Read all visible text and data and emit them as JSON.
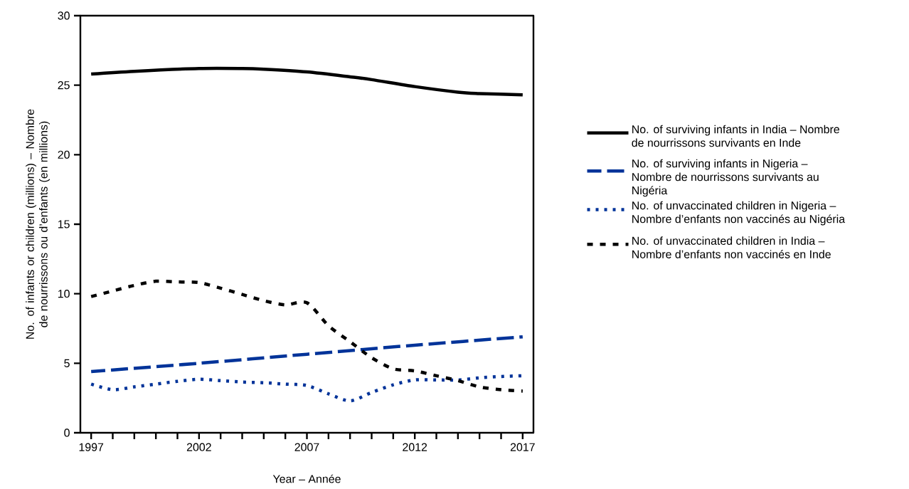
{
  "chart_data": {
    "type": "line",
    "xlabel": "Year – Année",
    "ylabel": "No. of infants or children (millions) – Nombre de nourrissons ou d’enfants (en millions)",
    "xlim": [
      1996.5,
      2017.5
    ],
    "ylim": [
      0,
      30
    ],
    "xticks": [
      1997,
      {
        "value": 1998,
        "label": null
      },
      {
        "value": 1999,
        "label": null
      },
      {
        "value": 2000,
        "label": null
      },
      {
        "value": 2001,
        "label": null
      },
      2002,
      {
        "value": 2003,
        "label": null
      },
      {
        "value": 2004,
        "label": null
      },
      {
        "value": 2005,
        "label": null
      },
      {
        "value": 2006,
        "label": null
      },
      2007,
      {
        "value": 2008,
        "label": null
      },
      {
        "value": 2009,
        "label": null
      },
      {
        "value": 2010,
        "label": null
      },
      {
        "value": 2011,
        "label": null
      },
      2012,
      {
        "value": 2013,
        "label": null
      },
      {
        "value": 2014,
        "label": null
      },
      {
        "value": 2015,
        "label": null
      },
      {
        "value": 2016,
        "label": null
      },
      2017
    ],
    "yticks": [
      0,
      5,
      10,
      15,
      20,
      25,
      30
    ],
    "grid": false,
    "legend": "right",
    "marker": "none",
    "series": [
      {
        "name": "No. of surviving infants in India – Nombre de nourrissons survivants en Inde",
        "color": "#000000",
        "line_style": "solid",
        "x": [
          1997,
          1999,
          2002,
          2004,
          2005,
          2007,
          2009,
          2010,
          2012,
          2014,
          2015,
          2017
        ],
        "values": [
          25.8,
          26.0,
          26.2,
          26.2,
          26.15,
          25.95,
          25.6,
          25.4,
          24.9,
          24.5,
          24.4,
          24.3
        ]
      },
      {
        "name": "No. of surviving infants in Nigeria – Nombre de nourrissons survivants au Nigéria",
        "color": "#003399",
        "line_style": "dashed",
        "x": [
          1997,
          2002,
          2007,
          2012,
          2017
        ],
        "values": [
          4.4,
          5.0,
          5.65,
          6.3,
          6.9
        ]
      },
      {
        "name": "No. of unvaccinated children in Nigeria – Nombre d’enfants non vaccinés au Nigéria",
        "color": "#003399",
        "line_style": "dotted",
        "x": [
          1997,
          1998,
          1999,
          2000,
          2001,
          2002,
          2003,
          2004,
          2005,
          2006,
          2007,
          2008,
          2009,
          2010,
          2011,
          2012,
          2013,
          2014,
          2015,
          2016,
          2017
        ],
        "values": [
          3.5,
          3.1,
          3.3,
          3.5,
          3.7,
          3.85,
          3.75,
          3.65,
          3.6,
          3.5,
          3.4,
          2.8,
          2.3,
          2.9,
          3.45,
          3.8,
          3.8,
          3.8,
          3.95,
          4.05,
          4.1
        ]
      },
      {
        "name": "No. of unvaccinated children in India – Nombre d’enfants non vaccinés en Inde",
        "color": "#000000",
        "line_style": "dotted_wide",
        "x": [
          1997,
          1998,
          1999,
          2000,
          2001,
          2002,
          2003,
          2004,
          2005,
          2006,
          2007,
          2008,
          2009,
          2010,
          2011,
          2012,
          2013,
          2014,
          2015,
          2016,
          2017
        ],
        "values": [
          9.8,
          10.2,
          10.6,
          10.9,
          10.85,
          10.8,
          10.4,
          9.95,
          9.5,
          9.2,
          9.35,
          7.7,
          6.55,
          5.4,
          4.6,
          4.45,
          4.1,
          3.75,
          3.3,
          3.1,
          3.0
        ]
      }
    ]
  }
}
